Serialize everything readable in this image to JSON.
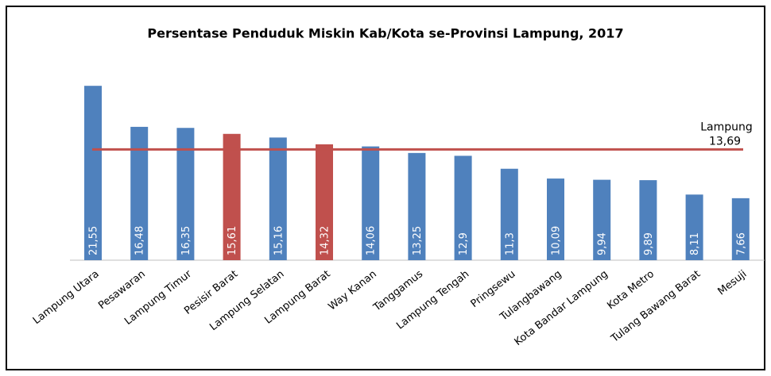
{
  "chart_data": {
    "type": "bar",
    "title": "Persentase Penduduk   Miskin Kab/Kota se-Provinsi Lampung,  2017",
    "categories": [
      "Lampung Utara",
      "Pesawaran",
      "Lampung Timur",
      "Pesisir Barat",
      "Lampung Selatan",
      "Lampung Barat",
      "Way Kanan",
      "Tanggamus",
      "Lampung Tengah",
      "Pringsewu",
      "Tulangbawang",
      "Kota Bandar Lampung",
      "Kota Metro",
      "Tulang Bawang Barat",
      "Mesuji"
    ],
    "values": [
      21.55,
      16.48,
      16.35,
      15.61,
      15.16,
      14.32,
      14.06,
      13.25,
      12.9,
      11.3,
      10.09,
      9.94,
      9.89,
      8.11,
      7.66
    ],
    "value_labels": [
      "21,55",
      "16,48",
      "16,35",
      "15,61",
      "15,16",
      "14,32",
      "14,06",
      "13,25",
      "12,9",
      "11,3",
      "10,09",
      "9,94",
      "9,89",
      "8,11",
      "7,66"
    ],
    "colors": [
      "#4f81bd",
      "#4f81bd",
      "#4f81bd",
      "#c0504d",
      "#4f81bd",
      "#c0504d",
      "#4f81bd",
      "#4f81bd",
      "#4f81bd",
      "#4f81bd",
      "#4f81bd",
      "#4f81bd",
      "#4f81bd",
      "#4f81bd",
      "#4f81bd"
    ],
    "ylim": [
      0,
      25
    ],
    "reference_line": {
      "name": "Lampung",
      "value": 13.69,
      "label": "13,69",
      "color": "#c0504d"
    }
  }
}
